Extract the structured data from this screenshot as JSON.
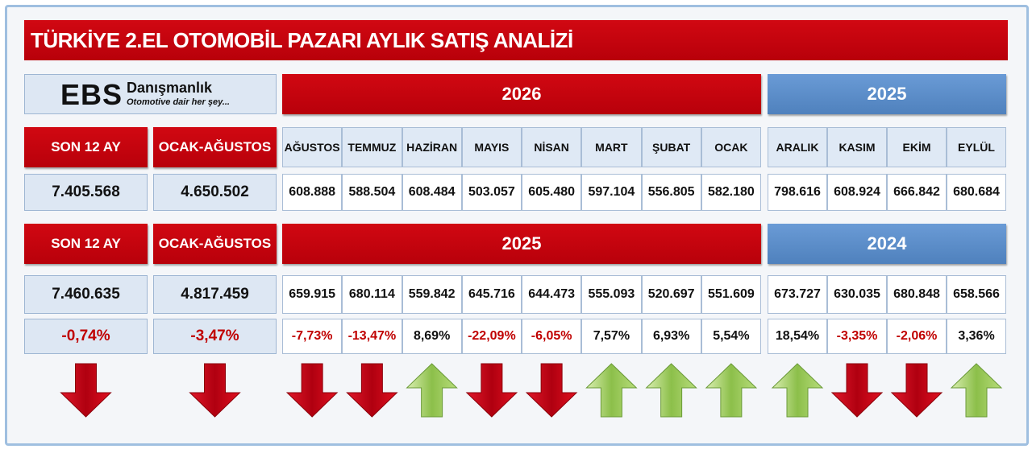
{
  "title": "TÜRKİYE 2.EL OTOMOBİL PAZARI AYLIK SATIŞ ANALİZİ",
  "logo": {
    "name": "EBS",
    "brand": "Danışmanlık",
    "tagline": "Otomotive dair her şey..."
  },
  "months": [
    "AĞUSTOS",
    "TEMMUZ",
    "HAZİRAN",
    "MAYIS",
    "NİSAN",
    "MART",
    "ŞUBAT",
    "OCAK",
    "ARALIK",
    "KASIM",
    "EKİM",
    "EYLÜL"
  ],
  "period1": {
    "summary_labels": [
      "SON 12 AY",
      "OCAK-AĞUSTOS"
    ],
    "years": [
      "2026",
      "2025"
    ],
    "summary_values": [
      "7.405.568",
      "4.650.502"
    ],
    "values": [
      "608.888",
      "588.504",
      "608.484",
      "503.057",
      "605.480",
      "597.104",
      "556.805",
      "582.180",
      "798.616",
      "608.924",
      "666.842",
      "680.684"
    ]
  },
  "period2": {
    "summary_labels": [
      "SON 12 AY",
      "OCAK-AĞUSTOS"
    ],
    "years": [
      "2025",
      "2024"
    ],
    "summary_values": [
      "7.460.635",
      "4.817.459"
    ],
    "values": [
      "659.915",
      "680.114",
      "559.842",
      "645.716",
      "644.473",
      "555.093",
      "520.697",
      "551.609",
      "673.727",
      "630.035",
      "680.848",
      "658.566"
    ]
  },
  "change": {
    "summary_values": [
      "-0,74%",
      "-3,47%"
    ],
    "values": [
      "-7,73%",
      "-13,47%",
      "8,69%",
      "-22,09%",
      "-6,05%",
      "7,57%",
      "6,93%",
      "5,54%",
      "18,54%",
      "-3,35%",
      "-2,06%",
      "3,36%"
    ]
  }
}
